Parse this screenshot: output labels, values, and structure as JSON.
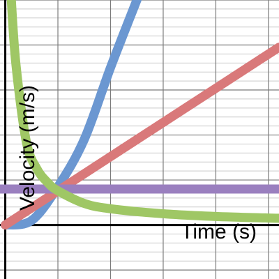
{
  "chart_data": {
    "type": "line",
    "xlabel": "Time (s)",
    "ylabel": "Velocity (m/s)",
    "xlim": [
      -0.1,
      5.2
    ],
    "ylim": [
      -1.2,
      5.0
    ],
    "grid": true,
    "series": [
      {
        "color": "#6b97d1",
        "points": [
          [
            0,
            0
          ],
          [
            0.5,
            0.1
          ],
          [
            1,
            0.85
          ],
          [
            1.5,
            1.9
          ],
          [
            2,
            3.5
          ],
          [
            2.5,
            5.0
          ],
          [
            2.6,
            5.3
          ]
        ]
      },
      {
        "color": "#d9797a",
        "points": [
          [
            0,
            0
          ],
          [
            5.2,
            3.95
          ]
        ]
      },
      {
        "color": "#9a7fbf",
        "points": [
          [
            -0.1,
            0.8
          ],
          [
            5.2,
            0.8
          ]
        ]
      },
      {
        "color": "#9fc765",
        "points": [
          [
            0.1,
            5.3
          ],
          [
            0.2,
            3.6
          ],
          [
            0.4,
            1.85
          ],
          [
            0.6,
            1.25
          ],
          [
            0.8,
            0.95
          ],
          [
            1,
            0.76
          ],
          [
            1.5,
            0.48
          ],
          [
            2,
            0.36
          ],
          [
            3,
            0.25
          ],
          [
            4,
            0.19
          ],
          [
            5.2,
            0.15
          ]
        ]
      }
    ]
  }
}
